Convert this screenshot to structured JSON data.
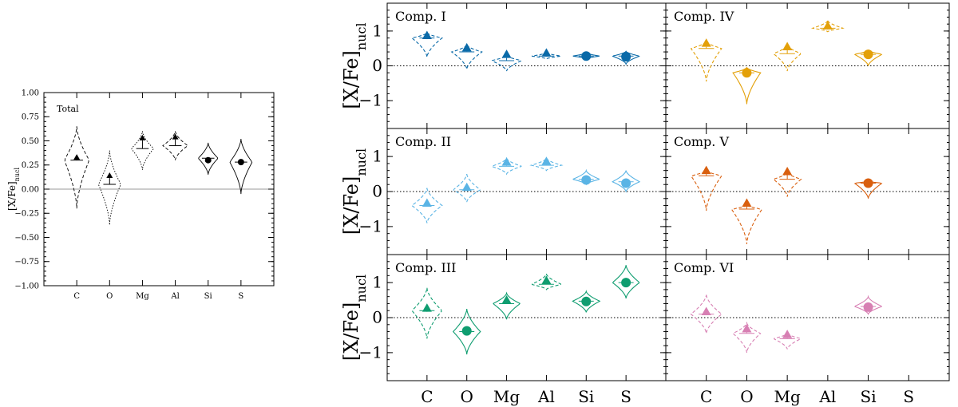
{
  "chart_data": [
    {
      "type": "violin",
      "title": "Total",
      "ylabel": "[X/Fe]",
      "ylabel_sub": "nucl",
      "ylim": [
        -1.0,
        1.0
      ],
      "yticks": [
        "1.00",
        "0.75",
        "0.50",
        "0.25",
        "0.00",
        "−0.25",
        "−0.50",
        "−0.75",
        "−1.00"
      ],
      "ytick_values": [
        1.0,
        0.75,
        0.5,
        0.25,
        0.0,
        -0.25,
        -0.5,
        -0.75,
        -1.0
      ],
      "categories": [
        "C",
        "O",
        "Mg",
        "Al",
        "Si",
        "S"
      ],
      "color": "#000000",
      "series": [
        {
          "name": "lower limit (triangle)",
          "marker": "triangle",
          "values": [
            0.33,
            0.14,
            0.53,
            0.54,
            null,
            null
          ]
        },
        {
          "name": "measurement (circle)",
          "marker": "circle",
          "values": [
            null,
            null,
            null,
            null,
            0.3,
            0.28
          ]
        }
      ],
      "violins": [
        {
          "style": "dashed",
          "center": 0.3,
          "min": -0.2,
          "max": 0.65,
          "halfwidth": 0.5
        },
        {
          "style": "dotted",
          "center": 0.05,
          "min": -0.37,
          "max": 0.4,
          "halfwidth": 0.45
        },
        {
          "style": "dotted",
          "center": 0.42,
          "min": 0.2,
          "max": 0.6,
          "halfwidth": 0.45
        },
        {
          "style": "dashed",
          "center": 0.45,
          "min": 0.3,
          "max": 0.6,
          "halfwidth": 0.5
        },
        {
          "style": "solid",
          "center": 0.32,
          "min": 0.15,
          "max": 0.48,
          "halfwidth": 0.4
        },
        {
          "style": "solid",
          "center": 0.28,
          "min": -0.05,
          "max": 0.52,
          "halfwidth": 0.45
        }
      ]
    },
    {
      "type": "violin",
      "title": "Comp. I",
      "ylim": [
        -1.8,
        1.8
      ],
      "color": "#0a6aa8",
      "ylabel": "[X/Fe]",
      "ylabel_sub": "nucl",
      "yticks": [
        "1",
        "0",
        "−1"
      ],
      "ytick_values": [
        1,
        0,
        -1
      ],
      "categories": [
        "C",
        "O",
        "Mg",
        "Al",
        "Si",
        "S"
      ],
      "series": [
        {
          "name": "lower limit (triangle)",
          "marker": "triangle",
          "values": [
            0.87,
            0.52,
            0.33,
            0.37,
            null,
            null
          ]
        },
        {
          "name": "measurement (circle)",
          "marker": "circle",
          "values": [
            null,
            null,
            null,
            null,
            0.28,
            0.26
          ]
        }
      ],
      "violins": [
        {
          "style": "dashed",
          "center": 0.8,
          "min": 0.25,
          "max": 0.95,
          "halfwidth": 0.5
        },
        {
          "style": "dashed",
          "center": 0.4,
          "min": -0.1,
          "max": 0.6,
          "halfwidth": 0.5
        },
        {
          "style": "dashed",
          "center": 0.15,
          "min": -0.15,
          "max": 0.3,
          "halfwidth": 0.5
        },
        {
          "style": "dashed",
          "center": 0.28,
          "min": 0.2,
          "max": 0.38,
          "halfwidth": 0.5
        },
        {
          "style": "solid",
          "center": 0.28,
          "min": 0.2,
          "max": 0.38,
          "halfwidth": 0.45
        },
        {
          "style": "solid",
          "center": 0.28,
          "min": 0.05,
          "max": 0.42,
          "halfwidth": 0.45
        }
      ]
    },
    {
      "type": "violin",
      "title": "Comp. IV",
      "ylim": [
        -1.8,
        1.8
      ],
      "color": "#e3a008",
      "categories": [
        "C",
        "O",
        "Mg",
        "Al",
        "Si",
        "S"
      ],
      "yticks": [
        "1",
        "0",
        "−1"
      ],
      "ytick_values": [
        1,
        0,
        -1
      ],
      "series": [
        {
          "name": "lower limit (triangle)",
          "marker": "triangle",
          "values": [
            0.65,
            null,
            0.55,
            1.15,
            null,
            null
          ]
        },
        {
          "name": "measurement (circle)",
          "marker": "circle",
          "values": [
            null,
            -0.2,
            null,
            null,
            0.33,
            null
          ]
        }
      ],
      "violins": [
        {
          "style": "dashed",
          "center": 0.5,
          "min": -0.45,
          "max": 0.7,
          "halfwidth": 0.5
        },
        {
          "style": "solid",
          "center": -0.2,
          "min": -1.1,
          "max": -0.05,
          "halfwidth": 0.45
        },
        {
          "style": "dashed",
          "center": 0.35,
          "min": -0.15,
          "max": 0.6,
          "halfwidth": 0.45
        },
        {
          "style": "dashed",
          "center": 1.08,
          "min": 0.98,
          "max": 1.3,
          "halfwidth": 0.5
        },
        {
          "style": "solid",
          "center": 0.33,
          "min": 0.0,
          "max": 0.45,
          "halfwidth": 0.45
        },
        null
      ]
    },
    {
      "type": "violin",
      "title": "Comp. II",
      "ylim": [
        -1.8,
        1.8
      ],
      "color": "#5ab4e5",
      "ylabel": "[X/Fe]",
      "ylabel_sub": "nucl",
      "yticks": [
        "1",
        "0",
        "−1"
      ],
      "ytick_values": [
        1,
        0,
        -1
      ],
      "categories": [
        "C",
        "O",
        "Mg",
        "Al",
        "Si",
        "S"
      ],
      "series": [
        {
          "name": "lower limit (triangle)",
          "marker": "triangle",
          "values": [
            -0.33,
            0.12,
            0.84,
            0.86,
            null,
            null
          ]
        },
        {
          "name": "measurement (circle)",
          "marker": "circle",
          "values": [
            null,
            null,
            null,
            null,
            0.33,
            0.24
          ]
        }
      ],
      "violins": [
        {
          "style": "dashed",
          "center": -0.4,
          "min": -0.9,
          "max": 0.1,
          "halfwidth": 0.5
        },
        {
          "style": "dashed",
          "center": 0.05,
          "min": -0.3,
          "max": 0.5,
          "halfwidth": 0.45
        },
        {
          "style": "dashed",
          "center": 0.72,
          "min": 0.5,
          "max": 0.95,
          "halfwidth": 0.5
        },
        {
          "style": "dashed",
          "center": 0.75,
          "min": 0.6,
          "max": 0.95,
          "halfwidth": 0.5
        },
        {
          "style": "solid",
          "center": 0.35,
          "min": 0.2,
          "max": 0.6,
          "halfwidth": 0.45
        },
        {
          "style": "solid",
          "center": 0.28,
          "min": 0.0,
          "max": 0.6,
          "halfwidth": 0.45
        }
      ]
    },
    {
      "type": "violin",
      "title": "Comp. V",
      "ylim": [
        -1.8,
        1.8
      ],
      "color": "#d95f0e",
      "categories": [
        "C",
        "O",
        "Mg",
        "Al",
        "Si",
        "S"
      ],
      "yticks": [
        "1",
        "0",
        "−1"
      ],
      "ytick_values": [
        1,
        0,
        -1
      ],
      "series": [
        {
          "name": "lower limit (triangle)",
          "marker": "triangle",
          "values": [
            0.6,
            -0.33,
            0.57,
            null,
            null,
            null
          ]
        },
        {
          "name": "measurement (circle)",
          "marker": "circle",
          "values": [
            null,
            null,
            null,
            null,
            0.24,
            null
          ]
        }
      ],
      "violins": [
        {
          "style": "dashed",
          "center": 0.45,
          "min": -0.55,
          "max": 0.6,
          "halfwidth": 0.5
        },
        {
          "style": "dashed",
          "center": -0.5,
          "min": -1.5,
          "max": -0.4,
          "halfwidth": 0.5
        },
        {
          "style": "dashed",
          "center": 0.35,
          "min": -0.15,
          "max": 0.55,
          "halfwidth": 0.45
        },
        null,
        {
          "style": "solid",
          "center": 0.24,
          "min": -0.2,
          "max": 0.3,
          "halfwidth": 0.45
        },
        null
      ]
    },
    {
      "type": "violin",
      "title": "Comp. III",
      "ylim": [
        -1.8,
        1.8
      ],
      "color": "#0f9d70",
      "ylabel": "[X/Fe]",
      "ylabel_sub": "nucl",
      "yticks": [
        "1",
        "0",
        "−1"
      ],
      "ytick_values": [
        1,
        0,
        -1
      ],
      "categories": [
        "C",
        "O",
        "Mg",
        "Al",
        "Si",
        "S"
      ],
      "series": [
        {
          "name": "lower limit (triangle)",
          "marker": "triangle",
          "values": [
            0.27,
            null,
            0.5,
            1.06,
            null,
            null
          ]
        },
        {
          "name": "measurement (circle)",
          "marker": "circle",
          "values": [
            null,
            -0.38,
            null,
            null,
            0.46,
            1.0
          ]
        }
      ],
      "violins": [
        {
          "style": "dashed",
          "center": 0.2,
          "min": -0.6,
          "max": 0.85,
          "halfwidth": 0.5
        },
        {
          "style": "solid",
          "center": -0.4,
          "min": -1.05,
          "max": 0.25,
          "halfwidth": 0.45
        },
        {
          "style": "solid",
          "center": 0.4,
          "min": -0.05,
          "max": 0.7,
          "halfwidth": 0.45
        },
        {
          "style": "dashed",
          "center": 0.95,
          "min": 0.8,
          "max": 1.25,
          "halfwidth": 0.5
        },
        {
          "style": "solid",
          "center": 0.47,
          "min": 0.15,
          "max": 0.75,
          "halfwidth": 0.45
        },
        {
          "style": "solid",
          "center": 1.0,
          "min": 0.55,
          "max": 1.5,
          "halfwidth": 0.45
        }
      ]
    },
    {
      "type": "violin",
      "title": "Comp. VI",
      "ylim": [
        -1.8,
        1.8
      ],
      "color": "#d77fb3",
      "categories": [
        "C",
        "O",
        "Mg",
        "Al",
        "Si",
        "S"
      ],
      "yticks": [
        "1",
        "0",
        "−1"
      ],
      "ytick_values": [
        1,
        0,
        -1
      ],
      "series": [
        {
          "name": "lower limit (triangle)",
          "marker": "triangle",
          "values": [
            0.17,
            -0.32,
            -0.48,
            null,
            null,
            null
          ]
        },
        {
          "name": "measurement (circle)",
          "marker": "circle",
          "values": [
            null,
            null,
            null,
            null,
            0.3,
            null
          ]
        }
      ],
      "violins": [
        {
          "style": "dashed",
          "center": 0.1,
          "min": -0.45,
          "max": 0.65,
          "halfwidth": 0.5
        },
        {
          "style": "dashed",
          "center": -0.45,
          "min": -1.0,
          "max": -0.15,
          "halfwidth": 0.45
        },
        {
          "style": "dashed",
          "center": -0.6,
          "min": -0.9,
          "max": -0.45,
          "halfwidth": 0.45
        },
        null,
        {
          "style": "solid",
          "center": 0.32,
          "min": 0.1,
          "max": 0.6,
          "halfwidth": 0.45
        },
        null
      ]
    }
  ]
}
